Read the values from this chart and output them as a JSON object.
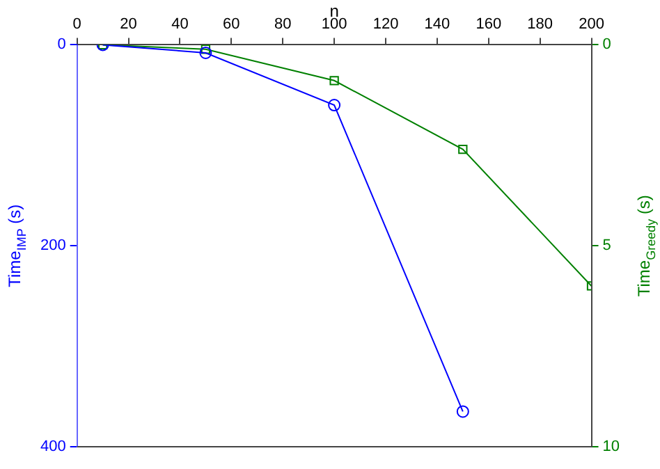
{
  "chart_data": {
    "type": "line",
    "xlabel": "n",
    "ylabel": "Time$_{IMP}$ (s)",
    "y2label": "Time$_{Greedy}$ (s)",
    "x": [
      10,
      50,
      100,
      150,
      200
    ],
    "xlim": [
      0,
      200
    ],
    "xticks": [
      0,
      20,
      40,
      60,
      80,
      100,
      120,
      140,
      160,
      180,
      200
    ],
    "ylim": [
      400,
      0
    ],
    "yticks": [
      0,
      200,
      400
    ],
    "y2lim": [
      10,
      0
    ],
    "y2ticks": [
      0,
      5,
      10
    ],
    "series": [
      {
        "color": "#0000ff",
        "marker": "circle",
        "values": [
          0,
          8,
          60,
          365,
          null
        ]
      },
      {
        "color": "#008000",
        "marker": "square",
        "axis": "y2",
        "values": [
          0,
          0.11,
          0.89,
          2.6,
          6
        ]
      }
    ]
  }
}
